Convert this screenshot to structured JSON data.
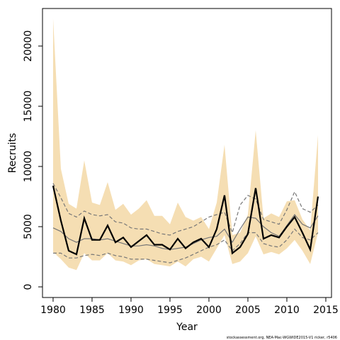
{
  "chart_data": {
    "type": "line",
    "x_label": "Year",
    "y_label": "Recruits",
    "note": "stockassessment.org, NEA-Mac-WGWIDE2015-V1 ricker, r5406",
    "x": [
      1980,
      1981,
      1982,
      1983,
      1984,
      1985,
      1986,
      1987,
      1988,
      1989,
      1990,
      1991,
      1992,
      1993,
      1994,
      1995,
      1996,
      1997,
      1998,
      1999,
      2000,
      2001,
      2002,
      2003,
      2004,
      2005,
      2006,
      2007,
      2008,
      2009,
      2010,
      2011,
      2012,
      2013,
      2014
    ],
    "xlim": [
      1978.64,
      2015.73
    ],
    "xticks": [
      1980,
      1985,
      1990,
      1995,
      2000,
      2005,
      2010,
      2015
    ],
    "ylim": [
      -882,
      23118
    ],
    "yticks": [
      0,
      5000,
      10000,
      15000,
      20000
    ],
    "band": {
      "color": "#f5deb3",
      "upper": [
        22300,
        9800,
        6900,
        6500,
        10500,
        7000,
        6800,
        8700,
        6400,
        6900,
        6000,
        6500,
        7200,
        5900,
        5900,
        5200,
        7000,
        5800,
        5500,
        5800,
        4800,
        7000,
        11800,
        4300,
        4500,
        6000,
        13000,
        5700,
        6100,
        5800,
        7100,
        7200,
        5600,
        4700,
        12600
      ],
      "lower": [
        2900,
        2300,
        1600,
        1400,
        2800,
        2200,
        2200,
        2800,
        2200,
        2100,
        1800,
        2200,
        2300,
        1900,
        1800,
        1700,
        2100,
        1700,
        2300,
        2500,
        2100,
        3200,
        4300,
        1900,
        2100,
        2800,
        4200,
        2700,
        2900,
        2700,
        3200,
        3900,
        3000,
        1900,
        4500
      ]
    },
    "series": [
      {
        "color": "#777777",
        "style": "dashed",
        "values": [
          8600,
          7400,
          6100,
          5800,
          6300,
          6000,
          5900,
          6000,
          5400,
          5300,
          4900,
          4800,
          4800,
          4600,
          4400,
          4300,
          4600,
          4800,
          5000,
          5400,
          5800,
          6000,
          6200,
          4500,
          6800,
          7600,
          7300,
          5600,
          5400,
          5200,
          6400,
          7900,
          6500,
          6200,
          6800
        ]
      },
      {
        "color": "#777777",
        "style": "dashed",
        "values": [
          2800,
          2800,
          2400,
          2400,
          2600,
          2700,
          2600,
          2800,
          2600,
          2500,
          2300,
          2300,
          2300,
          2200,
          2100,
          2000,
          2200,
          2400,
          2700,
          3000,
          3300,
          3500,
          3900,
          3000,
          3600,
          4500,
          4500,
          3600,
          3400,
          3300,
          3900,
          4800,
          4100,
          3900,
          4500
        ]
      },
      {
        "color": "#777777",
        "style": "solid",
        "values": [
          4900,
          4600,
          4000,
          3700,
          4000,
          4000,
          3900,
          4000,
          3800,
          3600,
          3400,
          3400,
          3500,
          3400,
          3200,
          3100,
          3200,
          3300,
          3600,
          3900,
          4100,
          4200,
          4800,
          3700,
          4800,
          5800,
          5700,
          5000,
          4500,
          4200,
          5100,
          6000,
          5200,
          4900,
          5900
        ]
      },
      {
        "color": "#000000",
        "style": "bold",
        "values": [
          8400,
          5500,
          3000,
          2700,
          5700,
          3900,
          3900,
          5100,
          3700,
          4100,
          3300,
          3800,
          4300,
          3500,
          3500,
          3100,
          4000,
          3200,
          3700,
          4000,
          3300,
          4800,
          7600,
          2800,
          3300,
          4400,
          8200,
          4000,
          4300,
          4100,
          5000,
          5800,
          4500,
          3100,
          7500
        ]
      }
    ]
  }
}
